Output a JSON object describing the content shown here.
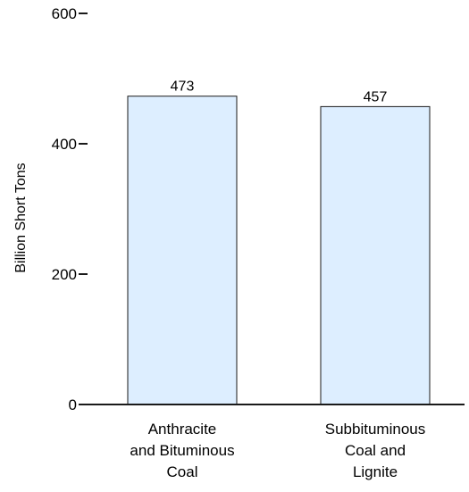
{
  "chart_data": {
    "type": "bar",
    "categories": [
      [
        "Anthracite",
        "and Bituminous",
        "Coal"
      ],
      [
        "Subbituminous",
        "Coal and",
        "Lignite"
      ]
    ],
    "values": [
      473,
      457
    ],
    "data_labels": [
      "473",
      "457"
    ],
    "ylabel": "Billion Short Tons",
    "ylim": [
      0,
      600
    ],
    "yticks": [
      0,
      200,
      400,
      600
    ],
    "ytick_labels": [
      "0",
      "200",
      "400",
      "600"
    ],
    "grid": false,
    "legend": "none",
    "colors": {
      "bar_fill": "#ddeeff",
      "bar_stroke": "#1a1a1a",
      "axis": "#1a1a1a"
    }
  }
}
